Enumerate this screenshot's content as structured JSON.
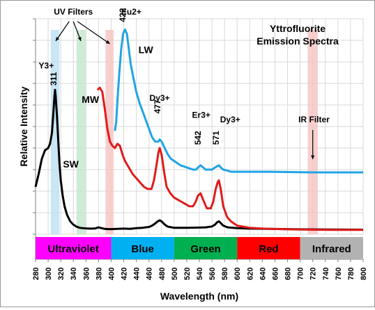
{
  "chart_data": {
    "type": "line",
    "title": "Yttrofluorite\nEmission Spectra",
    "title_lines": [
      "Yttrofluorite",
      "Emission Spectra"
    ],
    "xlabel": "Wavelength (nm)",
    "ylabel": "Relative Intensity",
    "xlim": [
      280,
      800
    ],
    "x_ticks": [
      280,
      300,
      320,
      340,
      360,
      380,
      400,
      420,
      440,
      460,
      480,
      500,
      520,
      540,
      560,
      580,
      600,
      620,
      640,
      660,
      680,
      700,
      720,
      740,
      760,
      780,
      800
    ],
    "ylim": [
      0,
      1
    ],
    "y_tick_labels": false,
    "grid": true,
    "series": [
      {
        "name": "SW",
        "color": "#000000",
        "x": [
          280,
          285,
          290,
          295,
          300,
          303,
          306,
          308,
          310,
          311,
          312,
          314,
          316,
          318,
          320,
          323,
          326,
          330,
          335,
          340,
          345,
          350,
          355,
          360,
          365,
          370,
          375,
          380,
          385,
          390,
          395,
          400,
          410,
          420,
          430,
          440,
          450,
          460,
          465,
          470,
          474,
          477,
          480,
          485,
          490,
          500,
          520,
          540,
          550,
          560,
          565,
          568,
          571,
          574,
          578,
          585,
          600,
          620,
          650,
          700,
          750,
          800
        ],
        "values": [
          0.22,
          0.28,
          0.35,
          0.39,
          0.4,
          0.42,
          0.47,
          0.55,
          0.64,
          0.67,
          0.64,
          0.55,
          0.44,
          0.33,
          0.25,
          0.18,
          0.13,
          0.09,
          0.06,
          0.045,
          0.035,
          0.03,
          0.028,
          0.027,
          0.026,
          0.026,
          0.027,
          0.032,
          0.028,
          0.025,
          0.024,
          0.024,
          0.025,
          0.026,
          0.025,
          0.028,
          0.03,
          0.034,
          0.04,
          0.05,
          0.06,
          0.065,
          0.06,
          0.045,
          0.035,
          0.03,
          0.03,
          0.031,
          0.032,
          0.036,
          0.045,
          0.055,
          0.06,
          0.052,
          0.04,
          0.032,
          0.028,
          0.026,
          0.025,
          0.023,
          0.022,
          0.021
        ]
      },
      {
        "name": "MW",
        "color": "#e01b1b",
        "x": [
          378,
          382,
          386,
          390,
          394,
          398,
          402,
          406,
          410,
          414,
          418,
          422,
          428,
          434,
          440,
          446,
          452,
          458,
          464,
          468,
          472,
          475,
          477,
          480,
          484,
          488,
          494,
          500,
          506,
          512,
          518,
          524,
          530,
          534,
          538,
          542,
          546,
          552,
          558,
          562,
          566,
          569,
          571,
          574,
          578,
          584,
          590,
          600,
          620,
          650,
          700,
          750,
          800
        ],
        "values": [
          0.67,
          0.68,
          0.66,
          0.58,
          0.49,
          0.43,
          0.41,
          0.4,
          0.42,
          0.41,
          0.37,
          0.34,
          0.31,
          0.28,
          0.26,
          0.24,
          0.22,
          0.21,
          0.21,
          0.25,
          0.32,
          0.38,
          0.4,
          0.37,
          0.29,
          0.22,
          0.19,
          0.17,
          0.16,
          0.15,
          0.14,
          0.13,
          0.13,
          0.15,
          0.18,
          0.19,
          0.16,
          0.12,
          0.12,
          0.15,
          0.21,
          0.24,
          0.25,
          0.21,
          0.13,
          0.08,
          0.06,
          0.04,
          0.03,
          0.025,
          0.022,
          0.02,
          0.02
        ]
      },
      {
        "name": "LW",
        "color": "#20a4e6",
        "x": [
          406,
          408,
          410,
          413,
          416,
          419,
          422,
          425,
          428,
          431,
          435,
          440,
          445,
          450,
          455,
          460,
          465,
          470,
          475,
          477,
          480,
          485,
          490,
          495,
          500,
          505,
          510,
          515,
          520,
          525,
          530,
          535,
          538,
          542,
          546,
          550,
          555,
          560,
          565,
          568,
          571,
          574,
          578,
          585,
          590,
          600,
          620,
          650,
          700,
          720,
          750,
          780,
          800
        ],
        "values": [
          0.48,
          0.52,
          0.62,
          0.75,
          0.86,
          0.93,
          0.95,
          0.93,
          0.86,
          0.79,
          0.73,
          0.66,
          0.61,
          0.57,
          0.53,
          0.49,
          0.45,
          0.43,
          0.43,
          0.44,
          0.43,
          0.4,
          0.37,
          0.35,
          0.34,
          0.33,
          0.32,
          0.315,
          0.31,
          0.305,
          0.3,
          0.3,
          0.31,
          0.32,
          0.31,
          0.3,
          0.3,
          0.3,
          0.31,
          0.315,
          0.32,
          0.31,
          0.3,
          0.295,
          0.29,
          0.29,
          0.29,
          0.29,
          0.288,
          0.287,
          0.287,
          0.287,
          0.287
        ]
      }
    ],
    "filters": [
      {
        "name": "UV Filters",
        "color": "#bfe2f3",
        "from": 304,
        "to": 318
      },
      {
        "name": "UV Filters",
        "color": "#c5e7d0",
        "from": 345,
        "to": 360
      },
      {
        "name": "UV Filters",
        "color": "#f6c7c7",
        "from": 391,
        "to": 404
      },
      {
        "name": "IR Filter",
        "color": "#f6c7c7",
        "from": 712,
        "to": 728
      }
    ],
    "annotations": [
      {
        "text": "UV Filters",
        "x": 340,
        "y": 1.02,
        "font": 12
      },
      {
        "text": "Eu2+",
        "x": 432,
        "y": 1.02,
        "font": 12
      },
      {
        "text": "422",
        "x": 423,
        "y": 0.985,
        "font": 12,
        "rotate": true
      },
      {
        "text": "LW",
        "x": 455,
        "y": 0.84,
        "font": 14
      },
      {
        "text": "Y3+",
        "x": 297,
        "y": 0.77,
        "font": 12
      },
      {
        "text": "311",
        "x": 313,
        "y": 0.69,
        "font": 12,
        "rotate": true
      },
      {
        "text": "MW",
        "x": 367,
        "y": 0.61,
        "font": 14
      },
      {
        "text": "Dy3+",
        "x": 477,
        "y": 0.62,
        "font": 12
      },
      {
        "text": "477",
        "x": 478,
        "y": 0.56,
        "font": 12,
        "rotate": true
      },
      {
        "text": "Er3+",
        "x": 543,
        "y": 0.54,
        "font": 12
      },
      {
        "text": "Dy3+",
        "x": 589,
        "y": 0.52,
        "font": 12
      },
      {
        "text": "542",
        "x": 542,
        "y": 0.415,
        "font": 12,
        "rotate": true
      },
      {
        "text": "571",
        "x": 571,
        "y": 0.415,
        "font": 12,
        "rotate": true
      },
      {
        "text": "IR Filter",
        "x": 722,
        "y": 0.52,
        "font": 12
      },
      {
        "text": "SW",
        "x": 336,
        "y": 0.31,
        "font": 14
      }
    ],
    "bands": [
      {
        "label": "Ultraviolet",
        "from": 280,
        "to": 400,
        "color": "#ff00ff"
      },
      {
        "label": "Blue",
        "from": 400,
        "to": 500,
        "color": "#00b0f0"
      },
      {
        "label": "Green",
        "from": 500,
        "to": 600,
        "color": "#00b050"
      },
      {
        "label": "Red",
        "from": 600,
        "to": 700,
        "color": "#ff0000"
      },
      {
        "label": "Infrared",
        "from": 700,
        "to": 800,
        "color": "#b2b2b2"
      }
    ]
  }
}
